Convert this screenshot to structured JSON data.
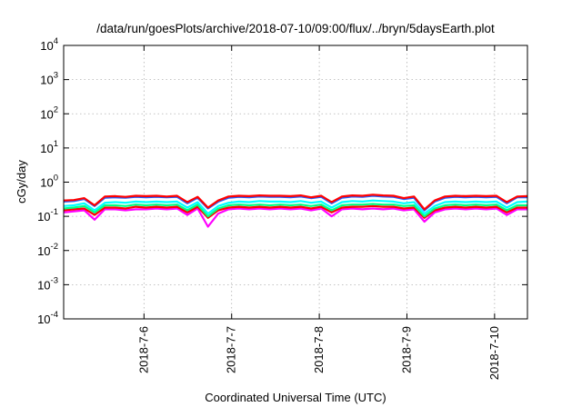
{
  "chart_data": {
    "type": "line",
    "title": "/data/run/goesPlots/archive/2018-07-10/09:00/flux/../bryn/5daysEarth.plot",
    "xlabel": "Coordinated Universal Time (UTC)",
    "ylabel": "cGy/day",
    "yscale": "log",
    "ylim": [
      0.0001,
      10000
    ],
    "xlim": [
      "2018-07-05T02:00",
      "2018-07-10T09:00"
    ],
    "grid": true,
    "y_ticks": [
      {
        "base": "10",
        "exp": "-4"
      },
      {
        "base": "10",
        "exp": "-3"
      },
      {
        "base": "10",
        "exp": "-2"
      },
      {
        "base": "10",
        "exp": "-1"
      },
      {
        "base": "10",
        "exp": "0"
      },
      {
        "base": "10",
        "exp": "1"
      },
      {
        "base": "10",
        "exp": "2"
      },
      {
        "base": "10",
        "exp": "3"
      },
      {
        "base": "10",
        "exp": "4"
      }
    ],
    "x_ticks": [
      {
        "label": "2018-7-6",
        "date": "2018-07-06"
      },
      {
        "label": "2018-7-7",
        "date": "2018-07-07"
      },
      {
        "label": "2018-7-8",
        "date": "2018-07-08"
      },
      {
        "label": "2018-7-9",
        "date": "2018-07-09"
      },
      {
        "label": "2018-7-10",
        "date": "2018-07-10"
      }
    ],
    "series": [
      {
        "color": "#ff00ff",
        "values": [
          0.13,
          0.14,
          0.15,
          0.08,
          0.16,
          0.16,
          0.15,
          0.16,
          0.16,
          0.17,
          0.16,
          0.17,
          0.11,
          0.17,
          0.05,
          0.12,
          0.16,
          0.17,
          0.16,
          0.17,
          0.16,
          0.17,
          0.16,
          0.17,
          0.15,
          0.17,
          0.1,
          0.16,
          0.17,
          0.16,
          0.17,
          0.16,
          0.17,
          0.15,
          0.16,
          0.07,
          0.13,
          0.16,
          0.17,
          0.16,
          0.17,
          0.16,
          0.17,
          0.11,
          0.16,
          0.16
        ]
      },
      {
        "color": "#ff0000",
        "values": [
          0.15,
          0.16,
          0.17,
          0.11,
          0.18,
          0.18,
          0.17,
          0.19,
          0.18,
          0.19,
          0.18,
          0.19,
          0.13,
          0.19,
          0.09,
          0.15,
          0.18,
          0.19,
          0.18,
          0.19,
          0.18,
          0.19,
          0.18,
          0.19,
          0.17,
          0.19,
          0.13,
          0.18,
          0.19,
          0.19,
          0.2,
          0.19,
          0.19,
          0.17,
          0.18,
          0.09,
          0.15,
          0.18,
          0.19,
          0.18,
          0.19,
          0.18,
          0.19,
          0.13,
          0.18,
          0.18
        ]
      },
      {
        "color": "#00ff80",
        "values": [
          0.17,
          0.18,
          0.2,
          0.13,
          0.21,
          0.21,
          0.2,
          0.22,
          0.21,
          0.22,
          0.21,
          0.22,
          0.15,
          0.22,
          0.1,
          0.17,
          0.21,
          0.22,
          0.21,
          0.22,
          0.21,
          0.22,
          0.21,
          0.22,
          0.2,
          0.22,
          0.15,
          0.21,
          0.22,
          0.22,
          0.23,
          0.22,
          0.22,
          0.2,
          0.21,
          0.1,
          0.17,
          0.21,
          0.22,
          0.21,
          0.22,
          0.21,
          0.22,
          0.15,
          0.21,
          0.21
        ]
      },
      {
        "color": "#00ffff",
        "values": [
          0.2,
          0.21,
          0.24,
          0.15,
          0.25,
          0.26,
          0.25,
          0.27,
          0.26,
          0.27,
          0.26,
          0.27,
          0.18,
          0.26,
          0.12,
          0.2,
          0.25,
          0.27,
          0.26,
          0.28,
          0.27,
          0.27,
          0.26,
          0.28,
          0.25,
          0.27,
          0.18,
          0.26,
          0.28,
          0.27,
          0.29,
          0.28,
          0.27,
          0.24,
          0.26,
          0.12,
          0.2,
          0.26,
          0.27,
          0.26,
          0.27,
          0.26,
          0.27,
          0.18,
          0.26,
          0.27
        ]
      },
      {
        "color": "#2060ff",
        "values": [
          0.27,
          0.28,
          0.32,
          0.2,
          0.35,
          0.36,
          0.35,
          0.37,
          0.36,
          0.37,
          0.36,
          0.37,
          0.24,
          0.35,
          0.17,
          0.27,
          0.35,
          0.37,
          0.36,
          0.38,
          0.37,
          0.37,
          0.36,
          0.38,
          0.34,
          0.37,
          0.24,
          0.35,
          0.38,
          0.37,
          0.4,
          0.38,
          0.37,
          0.32,
          0.35,
          0.15,
          0.27,
          0.35,
          0.37,
          0.36,
          0.37,
          0.36,
          0.37,
          0.24,
          0.36,
          0.36
        ]
      },
      {
        "color": "#ff0000",
        "values": [
          0.29,
          0.3,
          0.34,
          0.21,
          0.38,
          0.39,
          0.37,
          0.4,
          0.39,
          0.4,
          0.38,
          0.4,
          0.26,
          0.37,
          0.18,
          0.29,
          0.38,
          0.4,
          0.39,
          0.41,
          0.4,
          0.4,
          0.39,
          0.41,
          0.36,
          0.4,
          0.26,
          0.38,
          0.41,
          0.4,
          0.43,
          0.41,
          0.4,
          0.34,
          0.38,
          0.16,
          0.29,
          0.38,
          0.4,
          0.39,
          0.4,
          0.39,
          0.4,
          0.26,
          0.38,
          0.39
        ]
      }
    ]
  }
}
